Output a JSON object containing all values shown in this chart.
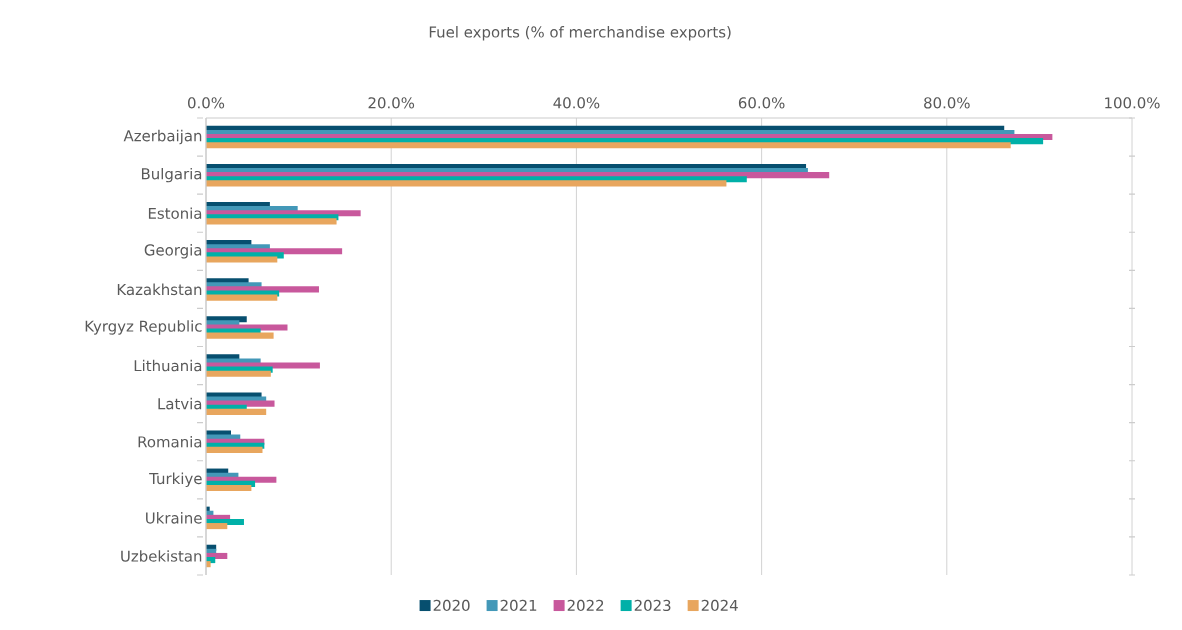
{
  "chart_data": {
    "type": "bar",
    "orientation": "horizontal",
    "title": "Fuel exports (% of merchandise exports)",
    "categories": [
      "Azerbaijan",
      "Bulgaria",
      "Estonia",
      "Georgia",
      "Kazakhstan",
      "Kyrgyz Republic",
      "Lithuania",
      "Latvia",
      "Romania",
      "Turkiye",
      "Ukraine",
      "Uzbekistan"
    ],
    "series": [
      {
        "name": "2020",
        "color": "#074f6f",
        "values": [
          86.2,
          64.8,
          6.9,
          4.9,
          4.6,
          4.4,
          3.6,
          6.0,
          2.7,
          2.4,
          0.4,
          1.1
        ]
      },
      {
        "name": "2021",
        "color": "#4398b8",
        "values": [
          87.3,
          65.0,
          9.9,
          6.9,
          6.0,
          3.6,
          5.9,
          6.5,
          3.7,
          3.5,
          0.8,
          1.1
        ]
      },
      {
        "name": "2022",
        "color": "#c8589c",
        "values": [
          91.4,
          67.3,
          16.7,
          14.7,
          12.2,
          8.8,
          12.3,
          7.4,
          6.3,
          7.6,
          2.6,
          2.3
        ]
      },
      {
        "name": "2023",
        "color": "#00b0a8",
        "values": [
          90.4,
          58.4,
          14.3,
          8.4,
          7.9,
          5.9,
          7.2,
          4.4,
          6.3,
          5.3,
          4.1,
          1.0
        ]
      },
      {
        "name": "2024",
        "color": "#e8a65e",
        "values": [
          86.9,
          56.2,
          14.1,
          7.7,
          7.7,
          7.3,
          7.0,
          6.5,
          6.1,
          4.9,
          2.3,
          0.5
        ]
      }
    ],
    "xlim": [
      0,
      100
    ],
    "xticks": [
      {
        "value": 0,
        "label": "0.0%"
      },
      {
        "value": 20,
        "label": "20.0%"
      },
      {
        "value": 40,
        "label": "40.0%"
      },
      {
        "value": 60,
        "label": "60.0%"
      },
      {
        "value": 80,
        "label": "80.0%"
      },
      {
        "value": 100,
        "label": "100.0%"
      }
    ],
    "grid": "x",
    "legend": "bottom"
  }
}
